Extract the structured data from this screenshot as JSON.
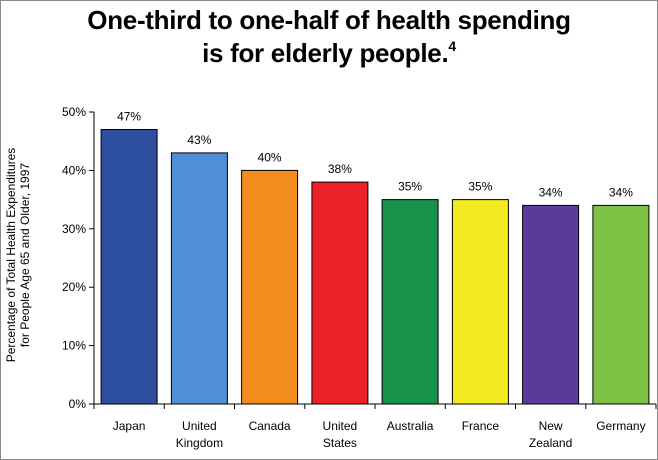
{
  "title": {
    "line1": "One-third to one-half of health spending",
    "line2": "is for elderly people.",
    "footnote": "4"
  },
  "chart_data": {
    "type": "bar",
    "title": "One-third to one-half of health spending is for elderly people.",
    "ylabel_line1": "Percentage of Total Health Expenditures",
    "ylabel_line2": "for People Age 65 and Older, 1997",
    "xlabel": "",
    "ylim": [
      0,
      50
    ],
    "y_ticks": [
      "0%",
      "10%",
      "20%",
      "30%",
      "40%",
      "50%"
    ],
    "grid": false,
    "categories": [
      [
        "Japan"
      ],
      [
        "United",
        "Kingdom"
      ],
      [
        "Canada"
      ],
      [
        "United",
        "States"
      ],
      [
        "Australia"
      ],
      [
        "France"
      ],
      [
        "New",
        "Zealand"
      ],
      [
        "Germany"
      ]
    ],
    "values": [
      47,
      43,
      40,
      38,
      35,
      35,
      34,
      34
    ],
    "data_labels": [
      "47%",
      "43%",
      "40%",
      "38%",
      "35%",
      "35%",
      "34%",
      "34%"
    ],
    "colors": [
      "#2e4fa0",
      "#4f8fd8",
      "#f28c1c",
      "#ec2027",
      "#16924a",
      "#f3ea1f",
      "#5c3a9a",
      "#7dc242"
    ]
  }
}
